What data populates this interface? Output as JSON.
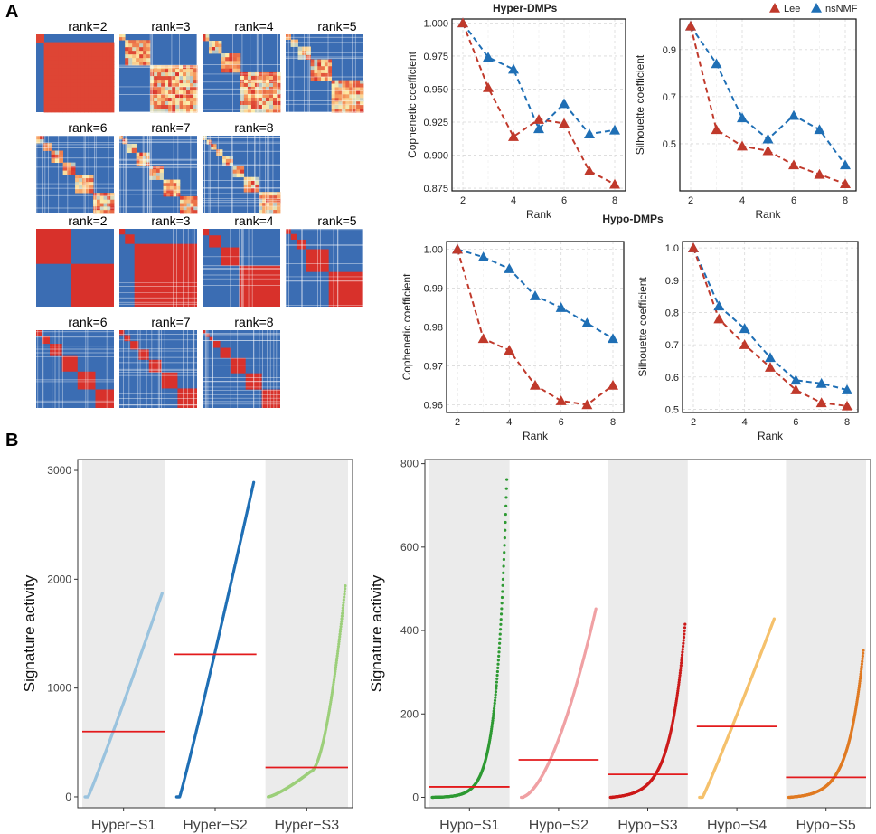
{
  "panel_labels": [
    "A",
    "B"
  ],
  "colors": {
    "lee": "#c0392b",
    "nsnmf": "#1f6fb5",
    "heat_low": "#3b6db3",
    "heat_high": "#d8312b",
    "mean_line": "#e31a1c",
    "band_gray": "#ebebeb"
  },
  "heatmaps": {
    "hyper": {
      "labels": [
        "rank=2",
        "rank=3",
        "rank=4",
        "rank=5",
        "rank=6",
        "rank=7",
        "rank=8"
      ]
    },
    "hypo": {
      "labels": [
        "rank=2",
        "rank=3",
        "rank=4",
        "rank=5",
        "rank=6",
        "rank=7",
        "rank=8"
      ]
    }
  },
  "chart_data": [
    {
      "id": "hyper-cophenetic",
      "type": "line",
      "group_title": "Hyper-DMPs",
      "xlabel": "Rank",
      "ylabel": "Cophenetic coefficient",
      "x": [
        2,
        3,
        4,
        5,
        6,
        7,
        8
      ],
      "series": [
        {
          "name": "Lee",
          "values": [
            1.0,
            0.951,
            0.914,
            0.927,
            0.924,
            0.888,
            0.878
          ]
        },
        {
          "name": "nsNMF",
          "values": [
            1.0,
            0.974,
            0.965,
            0.92,
            0.939,
            0.916,
            0.919
          ]
        }
      ],
      "ylim": [
        0.873,
        1.003
      ],
      "yticks": [
        "0.875",
        "0.900",
        "0.925",
        "0.950",
        "0.975",
        "1.000"
      ],
      "legend": [
        "Lee",
        "nsNMF"
      ],
      "legend_position": "top-right",
      "grid": true
    },
    {
      "id": "hyper-silhouette",
      "type": "line",
      "xlabel": "Rank",
      "ylabel": "Silhouette coefficient",
      "x": [
        2,
        3,
        4,
        5,
        6,
        7,
        8
      ],
      "series": [
        {
          "name": "Lee",
          "values": [
            1.0,
            0.56,
            0.49,
            0.47,
            0.41,
            0.37,
            0.33
          ]
        },
        {
          "name": "nsNMF",
          "values": [
            1.0,
            0.84,
            0.61,
            0.52,
            0.62,
            0.56,
            0.41
          ]
        }
      ],
      "ylim": [
        0.3,
        1.03
      ],
      "yticks": [
        "0.5",
        "0.7",
        "0.9"
      ],
      "grid": true
    },
    {
      "id": "hypo-cophenetic",
      "type": "line",
      "group_title": "Hypo-DMPs",
      "xlabel": "Rank",
      "ylabel": "Cophenetic coefficient",
      "x": [
        2,
        3,
        4,
        5,
        6,
        7,
        8
      ],
      "series": [
        {
          "name": "Lee",
          "values": [
            1.0,
            0.977,
            0.974,
            0.965,
            0.961,
            0.96,
            0.965
          ]
        },
        {
          "name": "nsNMF",
          "values": [
            1.0,
            0.998,
            0.995,
            0.988,
            0.985,
            0.981,
            0.977
          ]
        }
      ],
      "ylim": [
        0.958,
        1.002
      ],
      "yticks": [
        "0.96",
        "0.97",
        "0.98",
        "0.99",
        "1.00"
      ],
      "legend": [
        "Lee",
        "nsNMF"
      ],
      "legend_position": "top-right",
      "grid": true
    },
    {
      "id": "hypo-silhouette",
      "type": "line",
      "xlabel": "Rank",
      "ylabel": "Silhouette coefficient",
      "x": [
        2,
        3,
        4,
        5,
        6,
        7,
        8
      ],
      "series": [
        {
          "name": "Lee",
          "values": [
            1.0,
            0.78,
            0.7,
            0.63,
            0.56,
            0.52,
            0.51
          ]
        },
        {
          "name": "nsNMF",
          "values": [
            1.0,
            0.82,
            0.75,
            0.66,
            0.59,
            0.58,
            0.56
          ]
        }
      ],
      "ylim": [
        0.49,
        1.02
      ],
      "yticks": [
        "0.5",
        "0.6",
        "0.7",
        "0.8",
        "0.9",
        "1.0"
      ],
      "grid": true
    },
    {
      "id": "hyper-activity",
      "type": "scatter",
      "ylabel": "Signature activity",
      "ylim": [
        -100,
        3100
      ],
      "yticks": [
        0,
        1000,
        2000,
        3000
      ],
      "signatures": [
        {
          "name": "Hyper−S1",
          "color": "#9ac3de",
          "max": 1870,
          "mean": 600,
          "shape": "linear"
        },
        {
          "name": "Hyper−S2",
          "color": "#1f6fb5",
          "max": 2890,
          "mean": 1310,
          "shape": "linear"
        },
        {
          "name": "Hyper−S3",
          "color": "#9ccf7a",
          "max": 1940,
          "mean": 270,
          "shape": "late"
        }
      ]
    },
    {
      "id": "hypo-activity",
      "type": "scatter",
      "ylabel": "Signature activity",
      "ylim": [
        -25,
        810
      ],
      "yticks": [
        0,
        200,
        400,
        600,
        800
      ],
      "signatures": [
        {
          "name": "Hypo−S1",
          "color": "#2e9a33",
          "max": 762,
          "mean": 25,
          "shape": "exp"
        },
        {
          "name": "Hypo−S2",
          "color": "#f0a1a4",
          "max": 452,
          "mean": 90,
          "shape": "quad"
        },
        {
          "name": "Hypo−S3",
          "color": "#cc1a1a",
          "max": 415,
          "mean": 55,
          "shape": "exp2"
        },
        {
          "name": "Hypo−S4",
          "color": "#f5c16c",
          "max": 428,
          "mean": 170,
          "shape": "linear"
        },
        {
          "name": "Hypo−S5",
          "color": "#e07a22",
          "max": 352,
          "mean": 48,
          "shape": "exp2"
        }
      ]
    }
  ]
}
